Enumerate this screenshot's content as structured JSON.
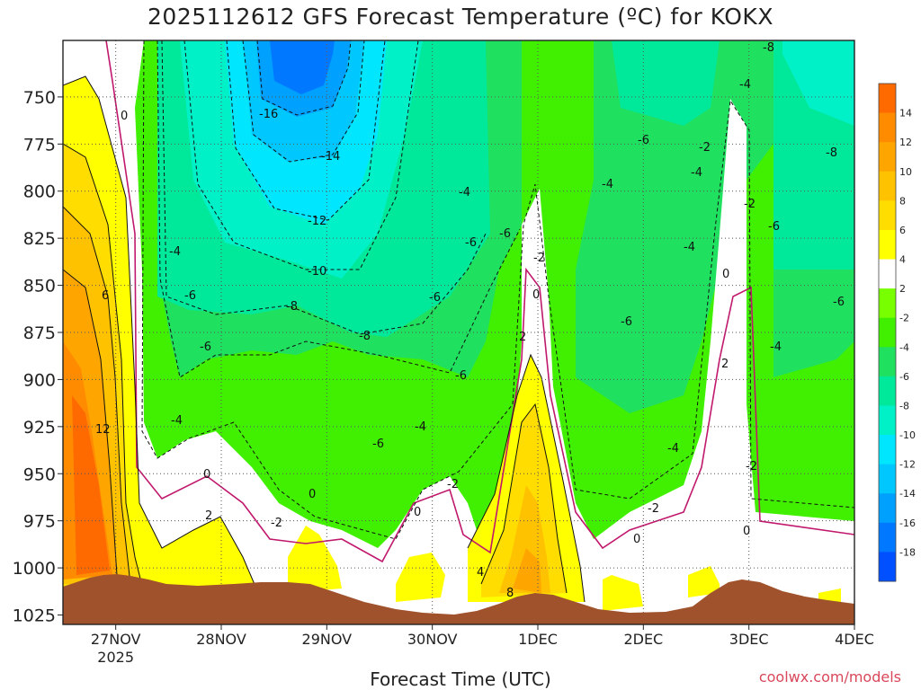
{
  "title": "2025112612 GFS Forecast Temperature (ºC) for KOKX",
  "xlabel": "Forecast Time (UTC)",
  "credit": "coolwx.com/models",
  "chart_data": {
    "type": "heatmap",
    "title": "2025112612 GFS Forecast Temperature (ºC) for KOKX",
    "xlabel": "Forecast Time (UTC)",
    "ylabel": "",
    "x_ticks": [
      "27NOV",
      "28NOV",
      "29NOV",
      "30NOV",
      "1DEC",
      "2DEC",
      "3DEC",
      "4DEC"
    ],
    "x_year_label": "2025",
    "y_ticks": [
      750,
      775,
      800,
      825,
      850,
      875,
      900,
      925,
      950,
      975,
      1000,
      1025
    ],
    "ylim": [
      1030,
      720
    ],
    "xlim_days": [
      26.5,
      34.0
    ],
    "grid": true,
    "colorbar": {
      "levels": [
        14,
        12,
        10,
        8,
        6,
        4,
        2,
        -2,
        -4,
        -6,
        -8,
        -10,
        -12,
        -14,
        -16,
        -18
      ],
      "colors": [
        "#ff6a00",
        "#ff8c00",
        "#ffa500",
        "#ffc200",
        "#ffdd00",
        "#ffff00",
        "#ffffff",
        "#78ff00",
        "#40f000",
        "#20e060",
        "#00e89a",
        "#00f0c8",
        "#00e6ff",
        "#00c8ff",
        "#00a0ff",
        "#0078ff",
        "#0050ff"
      ]
    },
    "contour_labels": [
      "-16",
      "-14",
      "-12",
      "-10",
      "-8",
      "-6",
      "-4",
      "-2",
      "0",
      "2",
      "4",
      "6",
      "8",
      "12"
    ]
  }
}
